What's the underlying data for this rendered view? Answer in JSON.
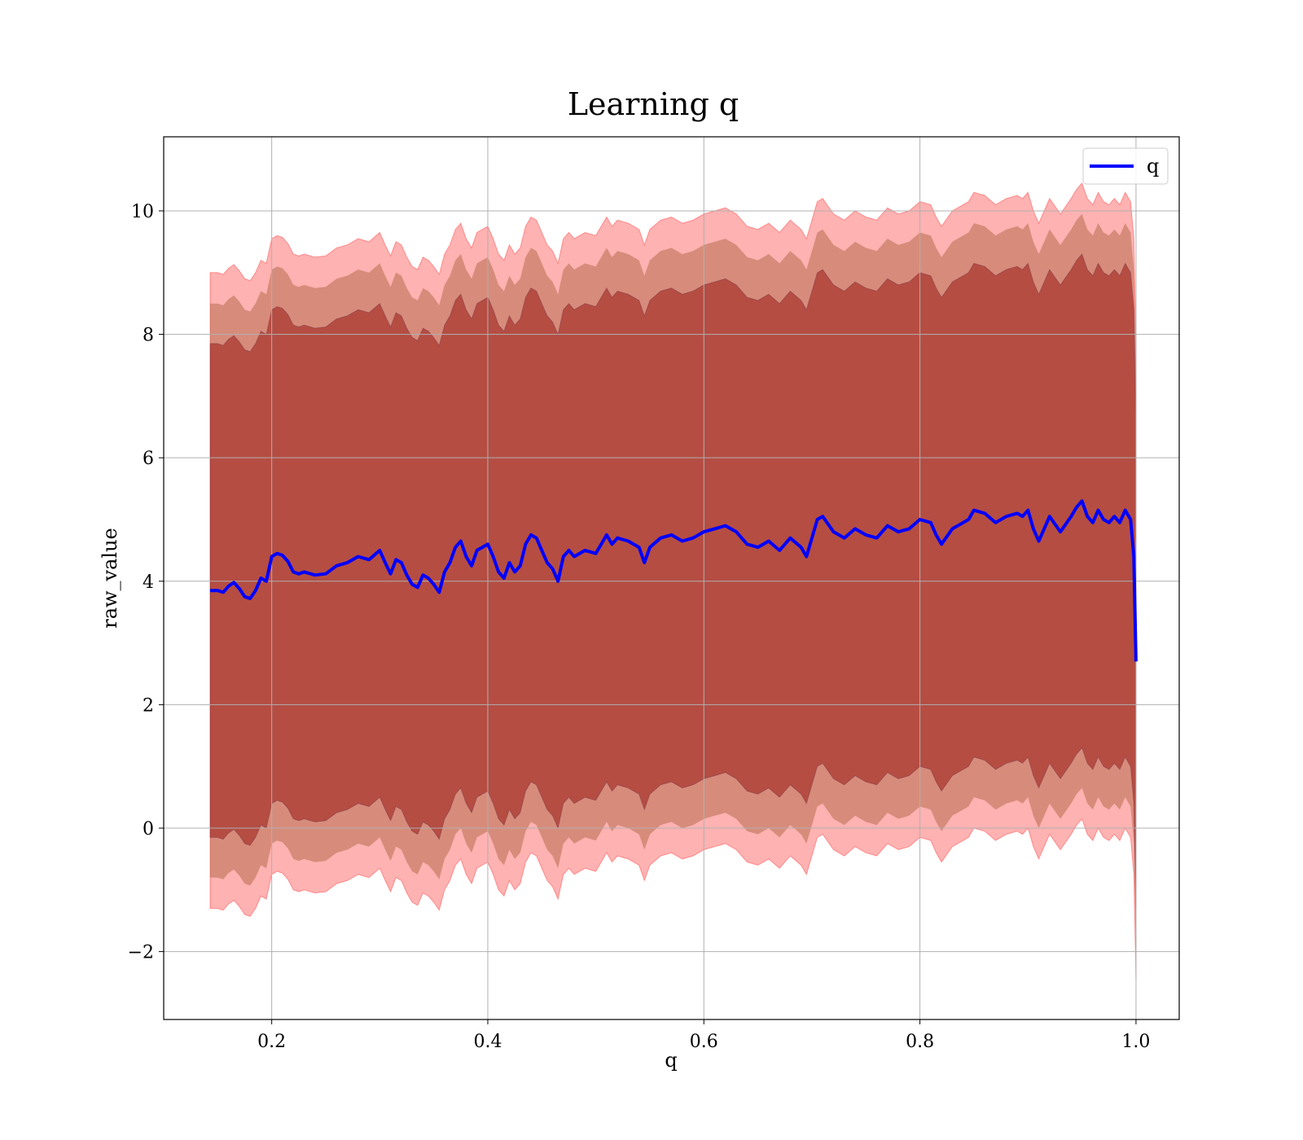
{
  "chart_data": {
    "type": "area",
    "title": "Learning q",
    "xlabel": "q",
    "ylabel": "raw_value",
    "xlim": [
      0.1,
      1.04
    ],
    "ylim": [
      -3.1,
      11.2
    ],
    "xticks": [
      0.2,
      0.4,
      0.6,
      0.8,
      1.0
    ],
    "xtick_labels": [
      "0.2",
      "0.4",
      "0.6",
      "0.8",
      "1.0"
    ],
    "yticks": [
      -2,
      0,
      2,
      4,
      6,
      8,
      10
    ],
    "ytick_labels": [
      "−2",
      "0",
      "2",
      "4",
      "6",
      "8",
      "10"
    ],
    "grid": true,
    "legend": {
      "position": "top-right",
      "entries": [
        "q"
      ]
    },
    "colors": {
      "line": "#0000ff",
      "band": "#ff0000",
      "band_overlap": "#8b0000"
    },
    "x": [
      0.143,
      0.15,
      0.155,
      0.16,
      0.165,
      0.17,
      0.175,
      0.18,
      0.185,
      0.19,
      0.195,
      0.2,
      0.205,
      0.21,
      0.215,
      0.22,
      0.225,
      0.23,
      0.24,
      0.25,
      0.26,
      0.27,
      0.28,
      0.29,
      0.3,
      0.305,
      0.31,
      0.315,
      0.32,
      0.325,
      0.33,
      0.335,
      0.34,
      0.345,
      0.35,
      0.355,
      0.36,
      0.365,
      0.37,
      0.375,
      0.38,
      0.385,
      0.39,
      0.395,
      0.4,
      0.405,
      0.41,
      0.415,
      0.42,
      0.425,
      0.43,
      0.435,
      0.44,
      0.445,
      0.45,
      0.455,
      0.46,
      0.465,
      0.47,
      0.475,
      0.48,
      0.49,
      0.5,
      0.51,
      0.515,
      0.52,
      0.53,
      0.54,
      0.545,
      0.55,
      0.56,
      0.57,
      0.58,
      0.59,
      0.6,
      0.61,
      0.62,
      0.63,
      0.64,
      0.65,
      0.66,
      0.67,
      0.68,
      0.69,
      0.695,
      0.7,
      0.705,
      0.71,
      0.72,
      0.73,
      0.74,
      0.75,
      0.76,
      0.77,
      0.78,
      0.79,
      0.8,
      0.81,
      0.815,
      0.82,
      0.83,
      0.84,
      0.845,
      0.85,
      0.86,
      0.87,
      0.88,
      0.89,
      0.895,
      0.9,
      0.905,
      0.91,
      0.915,
      0.92,
      0.93,
      0.94,
      0.945,
      0.95,
      0.955,
      0.96,
      0.965,
      0.97,
      0.975,
      0.98,
      0.985,
      0.99,
      0.995,
      0.998,
      1.0
    ],
    "series": [
      {
        "name": "q",
        "values": [
          3.85,
          3.85,
          3.82,
          3.92,
          3.98,
          3.88,
          3.75,
          3.72,
          3.85,
          4.05,
          4.0,
          4.4,
          4.45,
          4.42,
          4.32,
          4.15,
          4.12,
          4.15,
          4.1,
          4.12,
          4.25,
          4.3,
          4.4,
          4.35,
          4.5,
          4.3,
          4.12,
          4.35,
          4.3,
          4.1,
          3.95,
          3.9,
          4.1,
          4.05,
          3.95,
          3.82,
          4.15,
          4.3,
          4.55,
          4.65,
          4.4,
          4.25,
          4.5,
          4.55,
          4.6,
          4.4,
          4.15,
          4.05,
          4.3,
          4.15,
          4.25,
          4.6,
          4.75,
          4.7,
          4.5,
          4.3,
          4.2,
          4.0,
          4.4,
          4.5,
          4.4,
          4.5,
          4.45,
          4.75,
          4.6,
          4.7,
          4.65,
          4.55,
          4.3,
          4.55,
          4.7,
          4.75,
          4.65,
          4.7,
          4.8,
          4.85,
          4.9,
          4.8,
          4.6,
          4.55,
          4.65,
          4.5,
          4.7,
          4.55,
          4.4,
          4.7,
          5.0,
          5.05,
          4.8,
          4.7,
          4.85,
          4.75,
          4.7,
          4.9,
          4.8,
          4.85,
          5.0,
          4.95,
          4.75,
          4.6,
          4.85,
          4.95,
          5.0,
          5.15,
          5.1,
          4.95,
          5.05,
          5.1,
          5.05,
          5.15,
          4.85,
          4.65,
          4.85,
          5.05,
          4.8,
          5.05,
          5.2,
          5.3,
          5.05,
          4.95,
          5.15,
          5.0,
          4.95,
          5.05,
          4.95,
          5.15,
          5.0,
          4.4,
          2.7
        ]
      }
    ],
    "band_offsets": {
      "outer": 5.15,
      "middle": 4.65,
      "inner": 4.0
    }
  }
}
